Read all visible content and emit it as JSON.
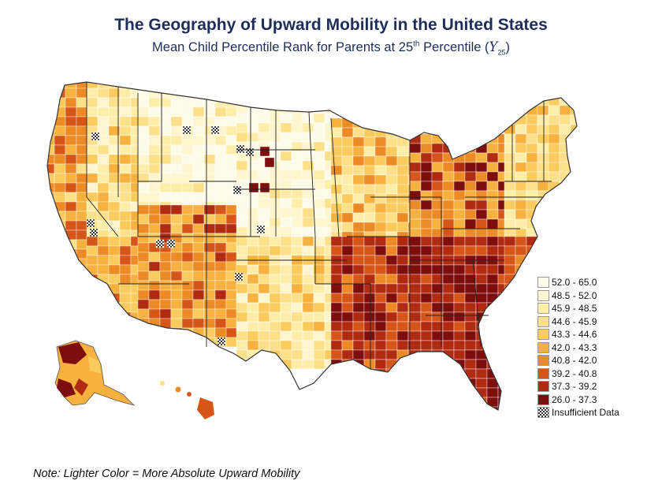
{
  "title": "The Geography of Upward Mobility in the United States",
  "subtitle": {
    "text": "Mean Child Percentile Rank for Parents at 25",
    "sup": "th",
    "text2": " Percentile (",
    "symbol": "Y",
    "sub": "25",
    "close": ")"
  },
  "legend": [
    {
      "label": "52.0 - 65.0",
      "color": "#fffbe9"
    },
    {
      "label": "48.5 - 52.0",
      "color": "#fff6cf"
    },
    {
      "label": "45.9 - 48.5",
      "color": "#ffeeaa"
    },
    {
      "label": "44.6 - 45.9",
      "color": "#fde08a"
    },
    {
      "label": "43.3 - 44.6",
      "color": "#fbcb5e"
    },
    {
      "label": "42.0 - 43.3",
      "color": "#f7b13f"
    },
    {
      "label": "40.8 - 42.0",
      "color": "#ec8a26"
    },
    {
      "label": "39.2 - 40.8",
      "color": "#d6561a"
    },
    {
      "label": "37.3 - 39.2",
      "color": "#b12a12"
    },
    {
      "label": "26.0 - 37.3",
      "color": "#7e0d0d"
    },
    {
      "label": "Insufficient Data",
      "color": "checker"
    }
  ],
  "note": "Note: Lighter Color = More Absolute Upward Mobility"
}
